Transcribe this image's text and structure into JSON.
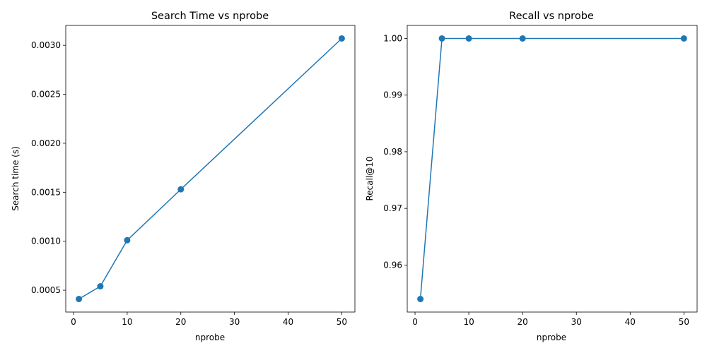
{
  "chart_data": [
    {
      "type": "line",
      "title": "Search Time vs nprobe",
      "xlabel": "nprobe",
      "ylabel": "Search time (s)",
      "x": [
        1,
        5,
        10,
        20,
        50
      ],
      "series": [
        {
          "values": [
            0.00041,
            0.00054,
            0.00101,
            0.00153,
            0.00307
          ],
          "color": "#1f77b4",
          "marker": "circle"
        }
      ],
      "xlim": [
        -1.45,
        52.45
      ],
      "ylim": [
        0.000277,
        0.003203
      ],
      "xticks": [
        0,
        10,
        20,
        30,
        40,
        50
      ],
      "xtick_labels": [
        "0",
        "10",
        "20",
        "30",
        "40",
        "50"
      ],
      "yticks": [
        0.0005,
        0.001,
        0.0015,
        0.002,
        0.0025,
        0.003
      ],
      "ytick_labels": [
        "0.0005",
        "0.0010",
        "0.0015",
        "0.0020",
        "0.0025",
        "0.0030"
      ],
      "grid": false
    },
    {
      "type": "line",
      "title": "Recall vs nprobe",
      "xlabel": "nprobe",
      "ylabel": "Recall@10",
      "x": [
        1,
        5,
        10,
        20,
        50
      ],
      "series": [
        {
          "values": [
            0.954,
            1.0,
            1.0,
            1.0,
            1.0
          ],
          "color": "#1f77b4",
          "marker": "circle"
        }
      ],
      "xlim": [
        -1.45,
        52.45
      ],
      "ylim": [
        0.9517,
        1.0023
      ],
      "xticks": [
        0,
        10,
        20,
        30,
        40,
        50
      ],
      "xtick_labels": [
        "0",
        "10",
        "20",
        "30",
        "40",
        "50"
      ],
      "yticks": [
        0.96,
        0.97,
        0.98,
        0.99,
        1.0
      ],
      "ytick_labels": [
        "0.96",
        "0.97",
        "0.98",
        "0.99",
        "1.00"
      ],
      "grid": false
    }
  ]
}
